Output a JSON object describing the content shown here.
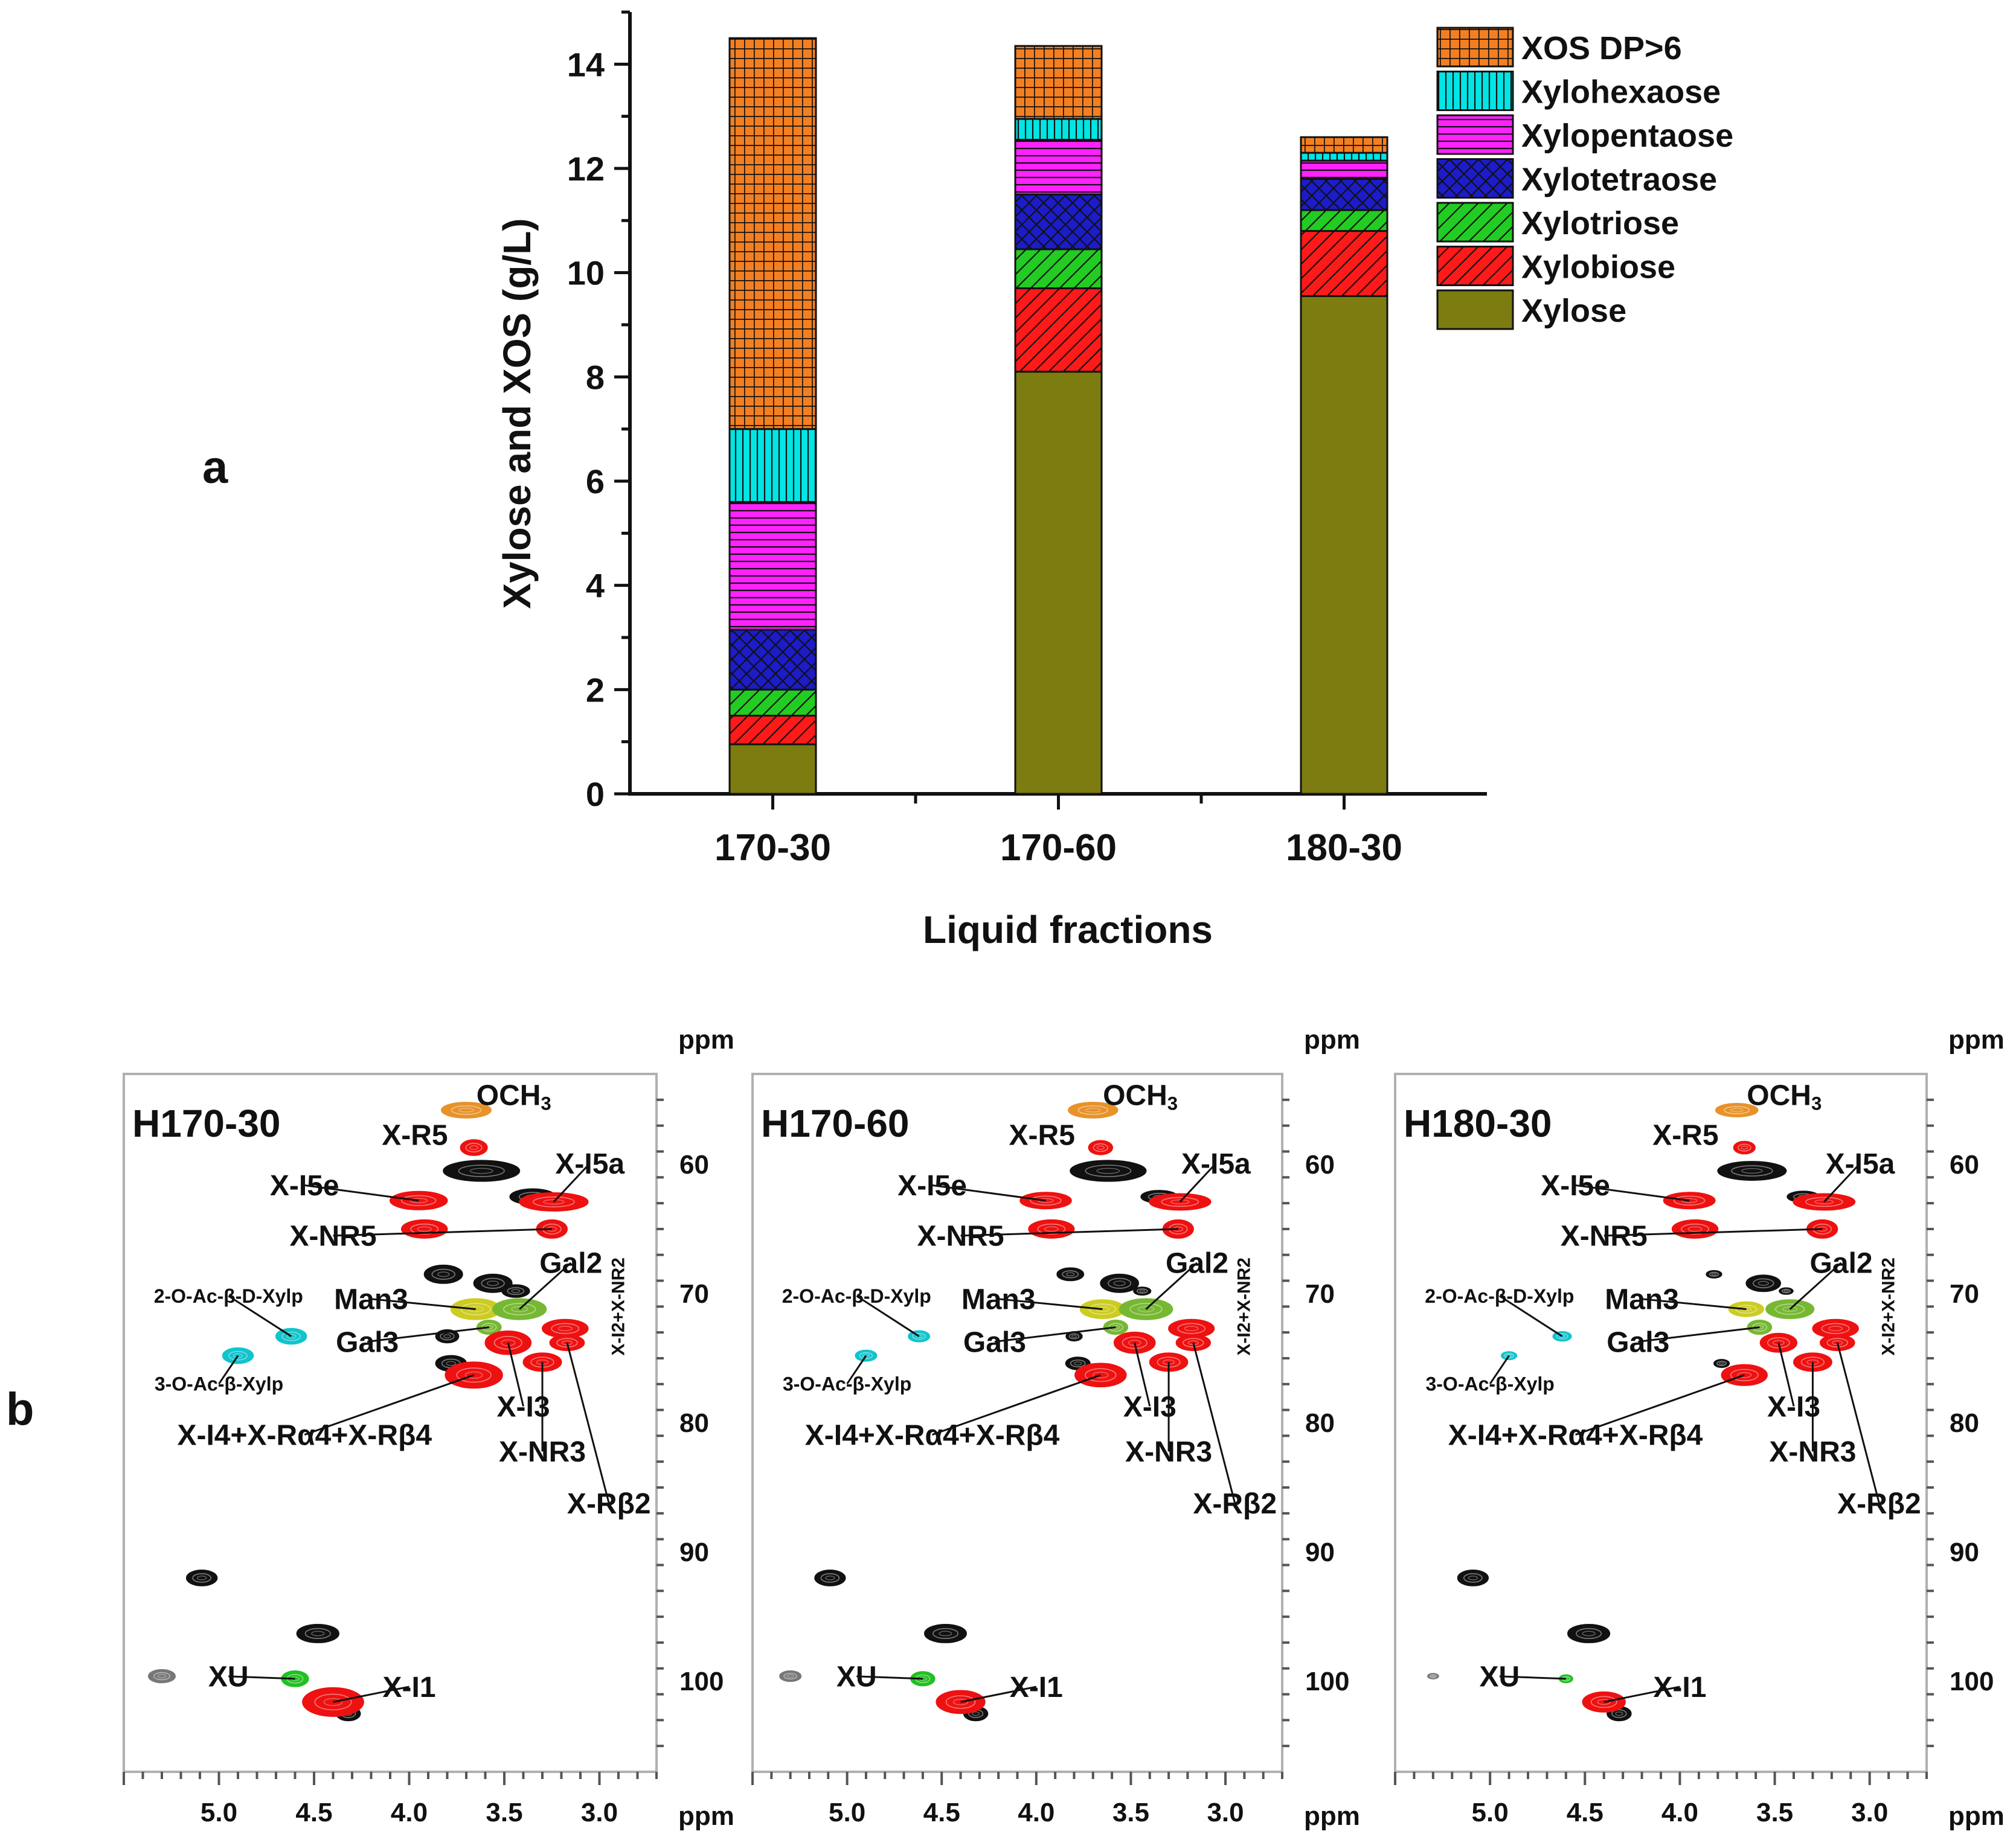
{
  "panel_a_label": "a",
  "panel_b_label": "b",
  "chart_data": [
    {
      "type": "bar",
      "stacked": true,
      "title": "",
      "xlabel": "Liquid fractions",
      "ylabel": "Xylose and XOS (g/L)",
      "ylim": [
        0,
        15
      ],
      "yticks": [
        0,
        2,
        4,
        6,
        8,
        10,
        12,
        14
      ],
      "legend_position": "top-right",
      "categories": [
        "170-30",
        "170-60",
        "180-30"
      ],
      "series": [
        {
          "name": "Xylose",
          "color": "#7c7c10",
          "pattern": "solid",
          "values": [
            0.95,
            8.1,
            9.55
          ]
        },
        {
          "name": "Xylobiose",
          "color": "#ff1a1a",
          "pattern": "diag-down",
          "values": [
            0.55,
            1.6,
            1.25
          ]
        },
        {
          "name": "Xylotriose",
          "color": "#22cc22",
          "pattern": "diag-down",
          "values": [
            0.5,
            0.75,
            0.4
          ]
        },
        {
          "name": "Xylotetraose",
          "color": "#1c1cc8",
          "pattern": "crosshatch",
          "values": [
            1.15,
            1.05,
            0.6
          ]
        },
        {
          "name": "Xylopentaose",
          "color": "#ff22ff",
          "pattern": "horizontal",
          "values": [
            2.45,
            1.05,
            0.35
          ]
        },
        {
          "name": "Xylohexaose",
          "color": "#00e5e5",
          "pattern": "vertical",
          "values": [
            1.4,
            0.4,
            0.15
          ]
        },
        {
          "name": "XOS DP>6",
          "color": "#f47f20",
          "pattern": "grid",
          "values": [
            7.5,
            1.4,
            0.3
          ]
        }
      ]
    },
    {
      "type": "scatter",
      "title": "",
      "panels": [
        "H170-30",
        "H170-60",
        "H180-30"
      ],
      "xlabel": "ppm",
      "ylabel": "ppm",
      "xlim": [
        5.5,
        2.7
      ],
      "ylim": [
        53,
        107
      ],
      "xticks": [
        "5.0",
        "4.5",
        "4.0",
        "3.5",
        "3.0"
      ],
      "xtick_values": [
        5.0,
        4.5,
        4.0,
        3.5,
        3.0
      ],
      "yticks": [
        "60",
        "70",
        "80",
        "90",
        "100"
      ],
      "ytick_values": [
        60,
        70,
        80,
        90,
        100
      ],
      "colors": {
        "xylan": "#ee1111",
        "lignin_methoxyl": "#e8922a",
        "acetyl": "#11c4cc",
        "uronic": "#22c022",
        "mannan": "#cccc22",
        "galactan": "#77b833",
        "unassigned": "#111111",
        "unassigned_weak": "#777777"
      },
      "peaks": [
        {
          "x": 3.7,
          "y": 55.8,
          "rx": 0.13,
          "ry": 0.6,
          "group": "lignin_methoxyl",
          "sizes": [
            1.0,
            1.0,
            0.85
          ]
        },
        {
          "x": 3.66,
          "y": 58.7,
          "rx": 0.07,
          "ry": 0.6,
          "group": "xylan",
          "sizes": [
            1.0,
            0.9,
            0.8
          ]
        },
        {
          "x": 3.62,
          "y": 60.5,
          "rx": 0.2,
          "ry": 0.8,
          "group": "unassigned",
          "sizes": [
            1.0,
            1.0,
            0.9
          ]
        },
        {
          "x": 3.35,
          "y": 62.5,
          "rx": 0.12,
          "ry": 0.6,
          "group": "unassigned",
          "sizes": [
            1.0,
            0.8,
            0.7
          ]
        },
        {
          "x": 3.95,
          "y": 62.8,
          "rx": 0.15,
          "ry": 0.7,
          "group": "xylan",
          "sizes": [
            1.0,
            0.9,
            0.9
          ]
        },
        {
          "x": 3.24,
          "y": 62.9,
          "rx": 0.18,
          "ry": 0.7,
          "group": "xylan",
          "sizes": [
            1.0,
            0.9,
            0.9
          ]
        },
        {
          "x": 3.92,
          "y": 65.0,
          "rx": 0.12,
          "ry": 0.7,
          "group": "xylan",
          "sizes": [
            1.0,
            1.0,
            1.0
          ]
        },
        {
          "x": 3.25,
          "y": 65.0,
          "rx": 0.08,
          "ry": 0.7,
          "group": "xylan",
          "sizes": [
            1.0,
            1.0,
            1.0
          ]
        },
        {
          "x": 3.82,
          "y": 68.5,
          "rx": 0.1,
          "ry": 0.7,
          "group": "unassigned",
          "sizes": [
            1.0,
            0.7,
            0.4
          ]
        },
        {
          "x": 3.56,
          "y": 69.2,
          "rx": 0.1,
          "ry": 0.7,
          "group": "unassigned",
          "sizes": [
            1.0,
            1.0,
            0.9
          ]
        },
        {
          "x": 3.44,
          "y": 69.8,
          "rx": 0.09,
          "ry": 0.6,
          "group": "unassigned",
          "sizes": [
            0.8,
            0.5,
            0.4
          ]
        },
        {
          "x": 3.65,
          "y": 71.2,
          "rx": 0.13,
          "ry": 0.8,
          "group": "mannan",
          "sizes": [
            1.0,
            0.9,
            0.7
          ]
        },
        {
          "x": 3.42,
          "y": 71.2,
          "rx": 0.14,
          "ry": 0.8,
          "group": "galactan",
          "sizes": [
            1.0,
            1.0,
            0.9
          ]
        },
        {
          "x": 3.58,
          "y": 72.6,
          "rx": 0.07,
          "ry": 0.6,
          "group": "galactan",
          "sizes": [
            0.9,
            0.9,
            0.9
          ]
        },
        {
          "x": 3.18,
          "y": 72.7,
          "rx": 0.12,
          "ry": 0.7,
          "group": "xylan",
          "sizes": [
            1.0,
            1.0,
            1.0
          ]
        },
        {
          "x": 3.17,
          "y": 73.8,
          "rx": 0.09,
          "ry": 0.6,
          "group": "xylan",
          "sizes": [
            1.0,
            1.0,
            1.0
          ]
        },
        {
          "x": 3.8,
          "y": 73.3,
          "rx": 0.06,
          "ry": 0.5,
          "group": "unassigned",
          "sizes": [
            1.0,
            0.7,
            0.0
          ]
        },
        {
          "x": 3.48,
          "y": 73.8,
          "rx": 0.12,
          "ry": 0.9,
          "group": "xylan",
          "sizes": [
            1.0,
            0.9,
            0.8
          ]
        },
        {
          "x": 3.3,
          "y": 75.3,
          "rx": 0.1,
          "ry": 0.7,
          "group": "xylan",
          "sizes": [
            1.0,
            1.0,
            1.0
          ]
        },
        {
          "x": 3.78,
          "y": 75.4,
          "rx": 0.08,
          "ry": 0.6,
          "group": "unassigned",
          "sizes": [
            1.0,
            0.8,
            0.5
          ]
        },
        {
          "x": 3.66,
          "y": 76.3,
          "rx": 0.15,
          "ry": 1.0,
          "group": "xylan",
          "sizes": [
            1.0,
            0.9,
            0.8
          ]
        },
        {
          "x": 4.62,
          "y": 73.3,
          "rx": 0.08,
          "ry": 0.6,
          "group": "acetyl",
          "sizes": [
            1.0,
            0.7,
            0.6
          ]
        },
        {
          "x": 4.9,
          "y": 74.8,
          "rx": 0.08,
          "ry": 0.6,
          "group": "acetyl",
          "sizes": [
            1.0,
            0.7,
            0.5
          ]
        },
        {
          "x": 5.09,
          "y": 92.0,
          "rx": 0.08,
          "ry": 0.6,
          "group": "unassigned",
          "sizes": [
            1.0,
            1.0,
            1.0
          ]
        },
        {
          "x": 4.48,
          "y": 96.3,
          "rx": 0.11,
          "ry": 0.7,
          "group": "unassigned",
          "sizes": [
            1.0,
            1.0,
            1.0
          ]
        },
        {
          "x": 5.3,
          "y": 99.6,
          "rx": 0.07,
          "ry": 0.5,
          "group": "unassigned_weak",
          "sizes": [
            1.0,
            0.8,
            0.4
          ]
        },
        {
          "x": 4.6,
          "y": 99.8,
          "rx": 0.07,
          "ry": 0.6,
          "group": "uronic",
          "sizes": [
            1.0,
            0.9,
            0.5
          ]
        },
        {
          "x": 4.32,
          "y": 102.5,
          "rx": 0.07,
          "ry": 0.6,
          "group": "unassigned",
          "sizes": [
            0.9,
            0.9,
            0.9
          ]
        },
        {
          "x": 4.4,
          "y": 101.6,
          "rx": 0.16,
          "ry": 1.1,
          "group": "xylan",
          "sizes": [
            1.0,
            0.8,
            0.7
          ]
        }
      ],
      "labels": [
        {
          "text": "OCH",
          "sub": "3",
          "x": 3.45,
          "y": 55.4,
          "size": "big"
        },
        {
          "text": "X-R5",
          "x": 3.97,
          "y": 58.5,
          "size": "big"
        },
        {
          "text": "X-I5a",
          "x": 3.05,
          "y": 60.7,
          "size": "big"
        },
        {
          "text": "X-I5e",
          "x": 4.55,
          "y": 62.4,
          "size": "big"
        },
        {
          "text": "X-NR5",
          "x": 4.4,
          "y": 66.3,
          "size": "big"
        },
        {
          "text": "Gal2",
          "x": 3.15,
          "y": 68.4,
          "size": "big"
        },
        {
          "text": "Man3",
          "x": 4.2,
          "y": 71.2,
          "size": "big"
        },
        {
          "text": "Gal3",
          "x": 4.22,
          "y": 74.5,
          "size": "big"
        },
        {
          "text": "2-O-Ac-β-D-Xylp",
          "x": 4.95,
          "y": 70.7,
          "size": "small"
        },
        {
          "text": "3-O-Ac-β-Xylp",
          "x": 5.0,
          "y": 77.5,
          "size": "small"
        },
        {
          "text": "X-I4+X-Rα4+X-Rβ4",
          "x": 4.55,
          "y": 81.7,
          "size": "big"
        },
        {
          "text": "X-I3",
          "x": 3.4,
          "y": 79.5,
          "size": "big"
        },
        {
          "text": "X-NR3",
          "x": 3.3,
          "y": 83.0,
          "size": "big"
        },
        {
          "text": "X-Rβ2",
          "x": 2.95,
          "y": 87.0,
          "size": "big"
        },
        {
          "text": "X-I2+X-NR2",
          "x": 2.87,
          "y": 71.0,
          "size": "rot"
        },
        {
          "text": "XU",
          "x": 4.95,
          "y": 100.4,
          "size": "big"
        },
        {
          "text": "X-I1",
          "x": 4.0,
          "y": 101.2,
          "size": "big"
        }
      ]
    }
  ]
}
